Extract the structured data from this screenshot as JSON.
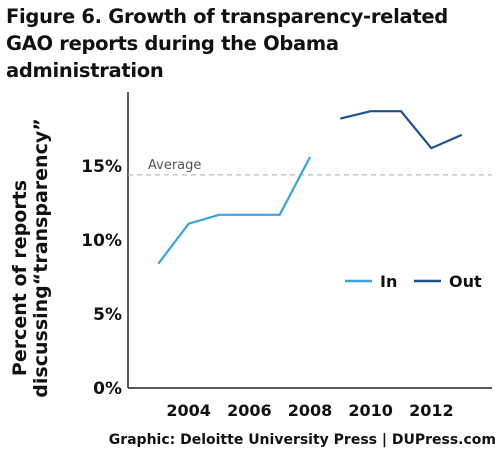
{
  "figure": {
    "title": "Figure 6. Growth of transparency-related GAO reports during the Obama administration",
    "credit": "Graphic: Deloitte University Press  |  DUPress.com"
  },
  "chart_data": {
    "type": "line",
    "title": "Figure 6. Growth of transparency-related GAO reports during the Obama administration",
    "ylabel_lines": [
      "Percent of reports",
      "discussing“transparency”"
    ],
    "xlabel": "",
    "ylim": [
      0,
      20
    ],
    "xlim": [
      2002,
      2014
    ],
    "yticks": [
      0,
      5,
      10,
      15
    ],
    "ytick_labels": [
      "0%",
      "5%",
      "10%",
      "15%"
    ],
    "xticks": [
      2004,
      2006,
      2008,
      2010,
      2012
    ],
    "xtick_labels": [
      "2004",
      "2006",
      "2008",
      "2010",
      "2012"
    ],
    "grid": false,
    "legend_position": "right",
    "reference_line": {
      "label": "Average",
      "value": 14.4,
      "color": "#bbbbbb"
    },
    "series": [
      {
        "name": "In",
        "color": "#3aa3d9",
        "x": [
          2003,
          2004,
          2005,
          2006,
          2007,
          2008
        ],
        "y": [
          8.4,
          11.1,
          11.7,
          11.7,
          11.7,
          15.6
        ]
      },
      {
        "name": "Out",
        "color": "#1f4e8c",
        "x": [
          2009,
          2010,
          2011,
          2012,
          2013
        ],
        "y": [
          18.2,
          18.7,
          18.7,
          16.2,
          17.1
        ]
      }
    ]
  }
}
